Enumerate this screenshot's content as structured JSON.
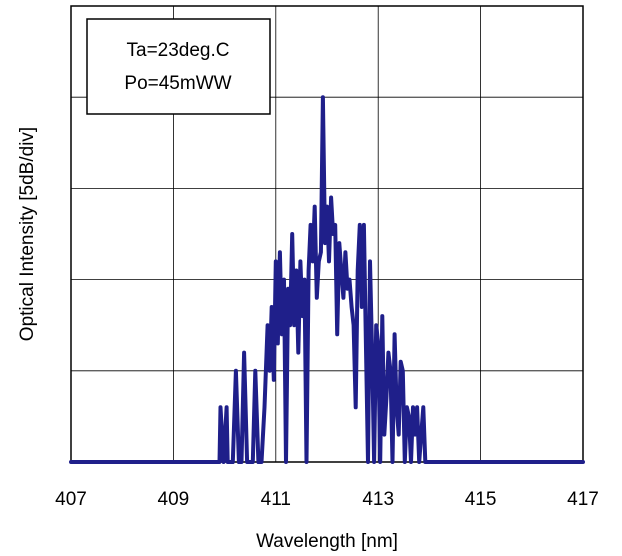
{
  "chart_data": {
    "type": "line",
    "title": "",
    "xlabel": "Wavelength [nm]",
    "ylabel": "Optical Intensity [5dB/div]",
    "xlim": [
      407,
      417
    ],
    "ylim": [
      0,
      5
    ],
    "x_ticks": [
      "407",
      "409",
      "411",
      "413",
      "415",
      "417"
    ],
    "x_tick_values": [
      407,
      409,
      411,
      413,
      415,
      417
    ],
    "x_grid_values": [
      407,
      409,
      411,
      413,
      415,
      417
    ],
    "y_grid_values": [
      0,
      1,
      2,
      3,
      4,
      5
    ],
    "grid": true,
    "legend": "none",
    "annotation": {
      "lines": [
        "Ta=23deg.C",
        "Po=45mWW"
      ]
    },
    "series_color": "#1f1f8a",
    "series": [
      {
        "x": [
          407.0,
          409.9,
          409.92,
          409.98,
          410.04,
          410.06,
          410.1,
          410.16,
          410.22,
          410.28,
          410.33,
          410.38,
          410.44,
          410.49,
          410.55,
          410.6,
          410.66,
          410.72,
          410.78,
          410.84,
          410.88,
          410.92,
          410.96,
          411.0,
          411.04,
          411.08,
          411.12,
          411.16,
          411.2,
          411.24,
          411.28,
          411.32,
          411.36,
          411.4,
          411.44,
          411.48,
          411.52,
          411.56,
          411.6,
          411.64,
          411.68,
          411.72,
          411.76,
          411.8,
          411.84,
          411.88,
          411.92,
          411.96,
          412.0,
          412.04,
          412.08,
          412.12,
          412.16,
          412.2,
          412.24,
          412.28,
          412.32,
          412.36,
          412.4,
          412.44,
          412.48,
          412.52,
          412.56,
          412.6,
          412.64,
          412.68,
          412.72,
          412.76,
          412.8,
          412.84,
          412.88,
          412.92,
          412.96,
          413.0,
          413.04,
          413.08,
          413.12,
          413.16,
          413.2,
          413.24,
          413.28,
          413.32,
          413.36,
          413.4,
          413.44,
          413.48,
          413.52,
          413.56,
          413.6,
          413.64,
          413.68,
          413.72,
          413.76,
          413.8,
          413.84,
          413.88,
          413.92,
          413.96,
          414.0,
          414.04,
          414.08,
          414.12,
          414.16,
          414.2,
          414.24,
          414.28,
          414.32,
          414.36,
          414.4,
          414.44,
          414.48,
          414.52,
          414.56,
          414.6,
          417.0
        ],
        "y": [
          0.0,
          0.0,
          0.6,
          0.0,
          0.6,
          0.0,
          0.0,
          0.0,
          1.0,
          0.0,
          0.0,
          1.2,
          0.0,
          0.0,
          0.0,
          1.0,
          0.0,
          0.0,
          0.6,
          1.5,
          1.0,
          1.7,
          0.9,
          2.2,
          1.3,
          2.3,
          1.4,
          2.0,
          0.0,
          1.9,
          1.5,
          2.5,
          1.5,
          2.1,
          1.2,
          2.2,
          1.6,
          2.0,
          0.0,
          2.1,
          2.6,
          2.2,
          2.8,
          1.8,
          2.2,
          2.3,
          4.0,
          2.4,
          2.8,
          2.2,
          2.9,
          2.5,
          2.6,
          1.4,
          2.4,
          2.1,
          1.8,
          2.3,
          1.9,
          2.0,
          1.7,
          1.5,
          0.6,
          2.1,
          2.6,
          1.7,
          2.6,
          1.3,
          0.0,
          2.2,
          1.2,
          0.0,
          1.5,
          1.3,
          0.0,
          1.6,
          0.3,
          0.7,
          1.2,
          1.0,
          0.0,
          1.4,
          0.6,
          0.3,
          1.1,
          1.0,
          0.0,
          0.6,
          0.5,
          0.0,
          0.6,
          0.3,
          0.6,
          0.0,
          0.3,
          0.6,
          0.0,
          0.0,
          0.0,
          0.0,
          0.0,
          0.0,
          0.0,
          0.0,
          0.0,
          0.0,
          0.0,
          0.0,
          0.0,
          0.0,
          0.0,
          0.0,
          0.0,
          0.0,
          0.0
        ]
      }
    ]
  }
}
